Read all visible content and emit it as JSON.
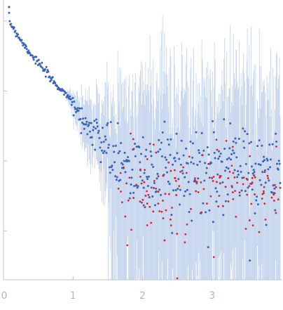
{
  "chart_data": {
    "type": "scatter",
    "title": "",
    "xlabel": "",
    "ylabel": "",
    "y_scale": "log",
    "xlim": [
      0,
      4.0
    ],
    "ylim_decades": [
      -3.7,
      0.3
    ],
    "grid": false,
    "x_ticks": [
      {
        "value": 0,
        "label": "0"
      },
      {
        "value": 1,
        "label": "1"
      },
      {
        "value": 2,
        "label": "2"
      },
      {
        "value": 3,
        "label": "3"
      }
    ],
    "y_tick_decades": [
      0,
      -1,
      -2,
      -3
    ],
    "colors": {
      "axis": "#b7c2d6",
      "tick_label": "#a9b6cc",
      "points_blue": "#3a64b8",
      "points_red": "#d9262e",
      "error_bars": "#a9c0e4"
    },
    "series": [
      {
        "color_key": "points_blue",
        "note_type": "measured-with-errors",
        "curve": [
          [
            0.08,
            0.0
          ],
          [
            0.3,
            -0.35
          ],
          [
            0.5,
            -0.6
          ],
          [
            0.7,
            -0.85
          ],
          [
            0.9,
            -1.05
          ],
          [
            1.1,
            -1.35
          ],
          [
            1.3,
            -1.6
          ],
          [
            1.5,
            -1.85
          ],
          [
            1.65,
            -2.0
          ],
          [
            1.8,
            -2.1
          ],
          [
            2.0,
            -2.15
          ],
          [
            2.5,
            -2.15
          ],
          [
            3.0,
            -2.15
          ],
          [
            3.5,
            -2.1
          ],
          [
            3.98,
            -2.1
          ]
        ],
        "x_start": 0.08,
        "x_end": 3.98,
        "n_points": 430
      },
      {
        "color_key": "points_red",
        "note_type": "outlier-points",
        "x_start": 1.65,
        "x_end": 3.98,
        "n_points": 150,
        "center": -2.4
      }
    ]
  }
}
